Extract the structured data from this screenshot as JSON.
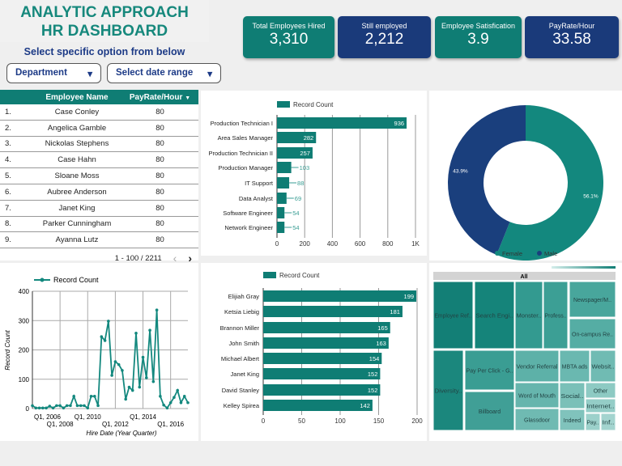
{
  "header": {
    "title_line1": "ANALYTIC APPROACH",
    "title_line2": "HR DASHBOARD",
    "subtitle": "Select specific option from below"
  },
  "filters": [
    {
      "label": "Department"
    },
    {
      "label": "Select date range"
    }
  ],
  "kpis": [
    {
      "label": "Total Employees Hired",
      "value": "3,310",
      "color": "#0f7d74"
    },
    {
      "label": "Still employed",
      "value": "2,212",
      "color": "#1a3a7a"
    },
    {
      "label": "Employee Satisfication",
      "value": "3.9",
      "color": "#0f7d74"
    },
    {
      "label": "PayRate/Hour",
      "value": "33.58",
      "color": "#1a3a7a"
    }
  ],
  "table": {
    "columns": [
      "Employee Name",
      "PayRate/Hour"
    ],
    "sort_icon": "sort-down-icon",
    "rows": [
      [
        "1.",
        "Case Conley",
        "80"
      ],
      [
        "2.",
        "Angelica Gamble",
        "80"
      ],
      [
        "3.",
        "Nickolas Stephens",
        "80"
      ],
      [
        "4.",
        "Case Hahn",
        "80"
      ],
      [
        "5.",
        "Sloane Moss",
        "80"
      ],
      [
        "6.",
        "Aubree Anderson",
        "80"
      ],
      [
        "7.",
        "Janet King",
        "80"
      ],
      [
        "8.",
        "Parker Cunningham",
        "80"
      ],
      [
        "9.",
        "Ayanna Lutz",
        "80"
      ]
    ],
    "pagination": "1 - 100 / 2211",
    "prev": "‹",
    "next": "›"
  },
  "chart_data": [
    {
      "type": "bar",
      "orientation": "horizontal",
      "legend": "Record Count",
      "categories": [
        "Production Technician I",
        "Area Sales Manager",
        "Production Technician II",
        "Production Manager",
        "IT Support",
        "Data Analyst",
        "Software Engineer",
        "Network Engineer"
      ],
      "values": [
        936,
        282,
        257,
        103,
        88,
        69,
        54,
        54
      ],
      "xlim": [
        0,
        1000
      ],
      "ticks": [
        "0",
        "200",
        "400",
        "600",
        "800",
        "1K"
      ],
      "grid": true,
      "color": "#0f7d74"
    },
    {
      "type": "pie",
      "donut": true,
      "categories": [
        "Female",
        "Male"
      ],
      "values": [
        56.1,
        43.9
      ],
      "labels": [
        "56.1%",
        "43.9%"
      ],
      "colors": [
        "#13887e",
        "#1a3f7d"
      ],
      "legend": "bottom"
    },
    {
      "type": "line",
      "legend": "Record Count",
      "xlabel": "Hire Date (Year Quarter)",
      "ylabel": "Record Count",
      "ylim": [
        0,
        400
      ],
      "yticks": [
        "0",
        "100",
        "200",
        "300",
        "400"
      ],
      "xticks": [
        "Q1, 2006",
        "Q1, 2008",
        "Q1, 2010",
        "Q1, 2012",
        "Q1, 2014",
        "Q1, 2016"
      ],
      "start": "Q1, 2006",
      "values": [
        10,
        2,
        2,
        2,
        2,
        8,
        2,
        10,
        10,
        2,
        10,
        10,
        42,
        10,
        10,
        10,
        2,
        42,
        42,
        10,
        245,
        232,
        298,
        113,
        160,
        150,
        130,
        32,
        73,
        62,
        257,
        73,
        175,
        105,
        267,
        92,
        336,
        42,
        12,
        2,
        20,
        38,
        62,
        20,
        42,
        20
      ],
      "grid": true,
      "color": "#13887e"
    },
    {
      "type": "bar",
      "orientation": "horizontal",
      "legend": "Record Count",
      "categories": [
        "Elijiah Gray",
        "Ketsia Liebig",
        "Brannon Miller",
        "John Smith",
        "Michael Albert",
        "Janet King",
        "David Stanley",
        "Kelley Spirea"
      ],
      "values": [
        199,
        181,
        165,
        163,
        154,
        152,
        152,
        142
      ],
      "xlim": [
        0,
        200
      ],
      "ticks": [
        "0",
        "50",
        "100",
        "150",
        "200"
      ],
      "grid": true,
      "color": "#0f7d74"
    },
    {
      "type": "treemap",
      "root": "All",
      "categories": [
        "Employee Ref..",
        "Search Engi..",
        "Monster..",
        "Profess..",
        "Newspager/M..",
        "On-campus Re..",
        "Diversity..",
        "Pay Per Click - G..",
        "Billboard",
        "Vendor Referral",
        "MBTA ads",
        "Websit..",
        "Word of Mouth",
        "Glassdoor",
        "Social..",
        "Indeed",
        "Other",
        "Internet..",
        "Pay..",
        "Inf.."
      ]
    }
  ]
}
